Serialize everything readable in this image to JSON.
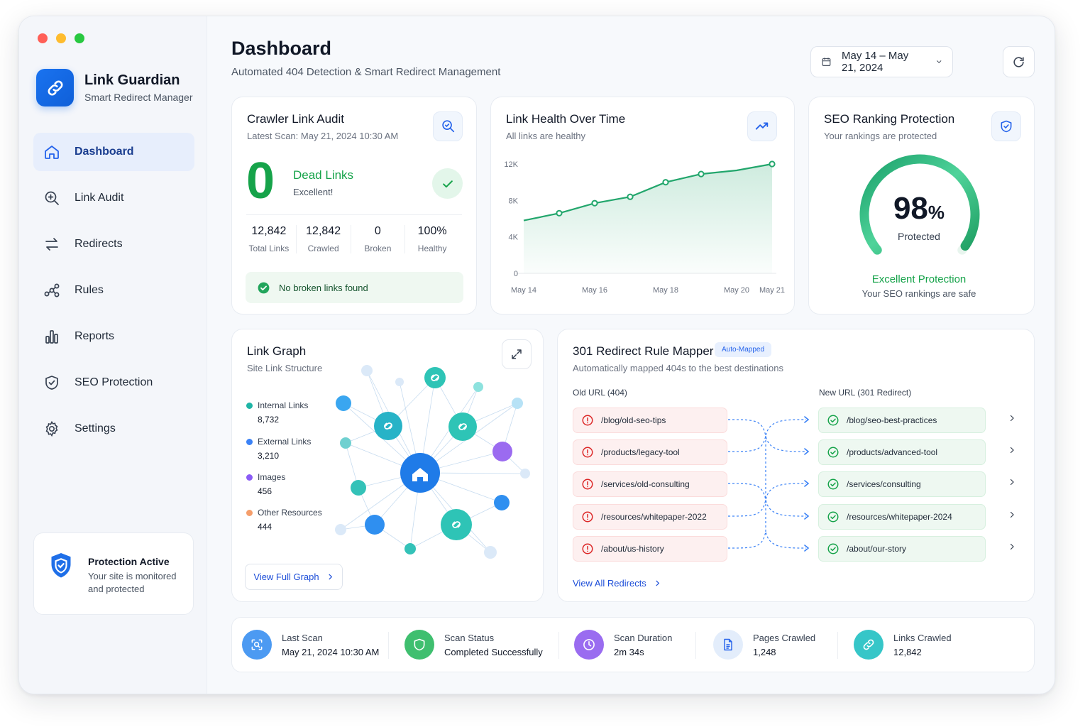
{
  "app": {
    "name": "Link Guardian",
    "tagline": "Smart Redirect Manager",
    "traffic_colors": [
      "#ff5f57",
      "#febc2e",
      "#28c840"
    ]
  },
  "sidebar": {
    "items": [
      {
        "label": "Dashboard",
        "icon": "home-icon",
        "active": true
      },
      {
        "label": "Link Audit",
        "icon": "search-plus-icon"
      },
      {
        "label": "Redirects",
        "icon": "swap-arrows-icon"
      },
      {
        "label": "Rules",
        "icon": "flow-nodes-icon"
      },
      {
        "label": "Reports",
        "icon": "bar-chart-icon"
      },
      {
        "label": "SEO Protection",
        "icon": "shield-check-icon"
      },
      {
        "label": "Settings",
        "icon": "gear-icon"
      }
    ],
    "protection": {
      "title": "Protection Active",
      "description": "Your site is monitored and protected"
    }
  },
  "header": {
    "title": "Dashboard",
    "subtitle": "Automated 404 Detection & Smart Redirect Management",
    "date_range": "May 14 – May 21, 2024"
  },
  "crawler": {
    "title": "Crawler Link Audit",
    "latest_scan": "Latest Scan: May 21, 2024 10:30 AM",
    "dead_count": "0",
    "dead_label": "Dead Links",
    "dead_status": "Excellent!",
    "stats": [
      {
        "value": "12,842",
        "label": "Total Links"
      },
      {
        "value": "12,842",
        "label": "Crawled"
      },
      {
        "value": "0",
        "label": "Broken"
      },
      {
        "value": "100%",
        "label": "Healthy"
      }
    ],
    "banner": "No broken links found"
  },
  "health": {
    "title": "Link Health Over Time",
    "subtitle": "All links are healthy"
  },
  "chart_data": {
    "type": "area",
    "x": [
      "May 14",
      "May 15",
      "May 16",
      "May 17",
      "May 18",
      "May 19",
      "May 20",
      "May 21"
    ],
    "x_tick_labels": [
      "May 14",
      "May 16",
      "May 18",
      "May 20",
      "May 21"
    ],
    "values": [
      5800,
      6600,
      7700,
      8400,
      10000,
      10900,
      11300,
      12000
    ],
    "marker_indices": [
      1,
      2,
      3,
      4,
      5,
      7
    ],
    "y_tick_labels": [
      "0",
      "4K",
      "8K",
      "12K"
    ],
    "ylim": [
      0,
      12000
    ],
    "title": "",
    "color": "#22a66c",
    "grid": false
  },
  "seo": {
    "title": "SEO Ranking Protection",
    "subtitle": "Your rankings are protected",
    "percent": "98",
    "percent_value": 98,
    "percent_sign": "%",
    "gauge_label": "Protected",
    "status": "Excellent Protection",
    "status_sub": "Your SEO rankings are safe"
  },
  "graph": {
    "title": "Link Graph",
    "subtitle": "Site Link Structure",
    "legend": [
      {
        "label": "Internal Links",
        "value": "8,732",
        "color": "#1fb5a6"
      },
      {
        "label": "External Links",
        "value": "3,210",
        "color": "#3b82f6"
      },
      {
        "label": "Images",
        "value": "456",
        "color": "#8b5cf6"
      },
      {
        "label": "Other Resources",
        "value": "444",
        "color": "#f59e6b"
      }
    ],
    "view_button": "View Full Graph"
  },
  "mapper": {
    "title": "301 Redirect Rule Mapper",
    "badge": "Auto-Mapped",
    "subtitle": "Automatically mapped 404s to the best destinations",
    "old_label": "Old URL (404)",
    "new_label": "New URL (301 Redirect)",
    "rows": [
      {
        "old": "/blog/old-seo-tips",
        "new": "/blog/seo-best-practices"
      },
      {
        "old": "/products/legacy-tool",
        "new": "/products/advanced-tool"
      },
      {
        "old": "/services/old-consulting",
        "new": "/services/consulting"
      },
      {
        "old": "/resources/whitepaper-2022",
        "new": "/resources/whitepaper-2024"
      },
      {
        "old": "/about/us-history",
        "new": "/about/our-story"
      }
    ],
    "view_all": "View All Redirects"
  },
  "status": [
    {
      "title": "Last Scan",
      "value": "May 21, 2024 10:30 AM",
      "icon": "scan-icon",
      "color": "#3b8ff0"
    },
    {
      "title": "Scan Status",
      "value": "Completed Successfully",
      "icon": "shield-check-icon",
      "color": "#3fbf6f"
    },
    {
      "title": "Scan Duration",
      "value": "2m 34s",
      "icon": "clock-icon",
      "color": "#8b5cf6"
    },
    {
      "title": "Pages Crawled",
      "value": "1,248",
      "icon": "document-icon",
      "color": "#dbe8fb"
    },
    {
      "title": "Links Crawled",
      "value": "12,842",
      "icon": "link-icon",
      "color": "#2ec4c4"
    }
  ]
}
